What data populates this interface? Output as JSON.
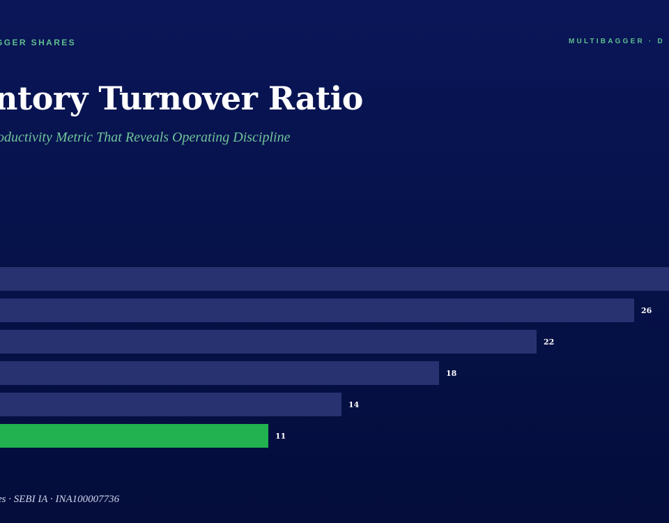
{
  "header": {
    "brand_left": "GGER SHARES",
    "brand_right": "MULTIBAGGER · D"
  },
  "title": "ntory Turnover Ratio",
  "subtitle": "oductivity Metric That Reveals Operating Discipline",
  "footer": "es · SEBI IA · INA100007736",
  "colors": {
    "bar": "#283270",
    "highlight": "#22b24f"
  },
  "chart_data": {
    "type": "bar",
    "orientation": "horizontal",
    "values": [
      null,
      26,
      22,
      18,
      14,
      11
    ],
    "value_labels": [
      "",
      "26",
      "22",
      "18",
      "14",
      "11"
    ],
    "highlight_index": 5
  }
}
